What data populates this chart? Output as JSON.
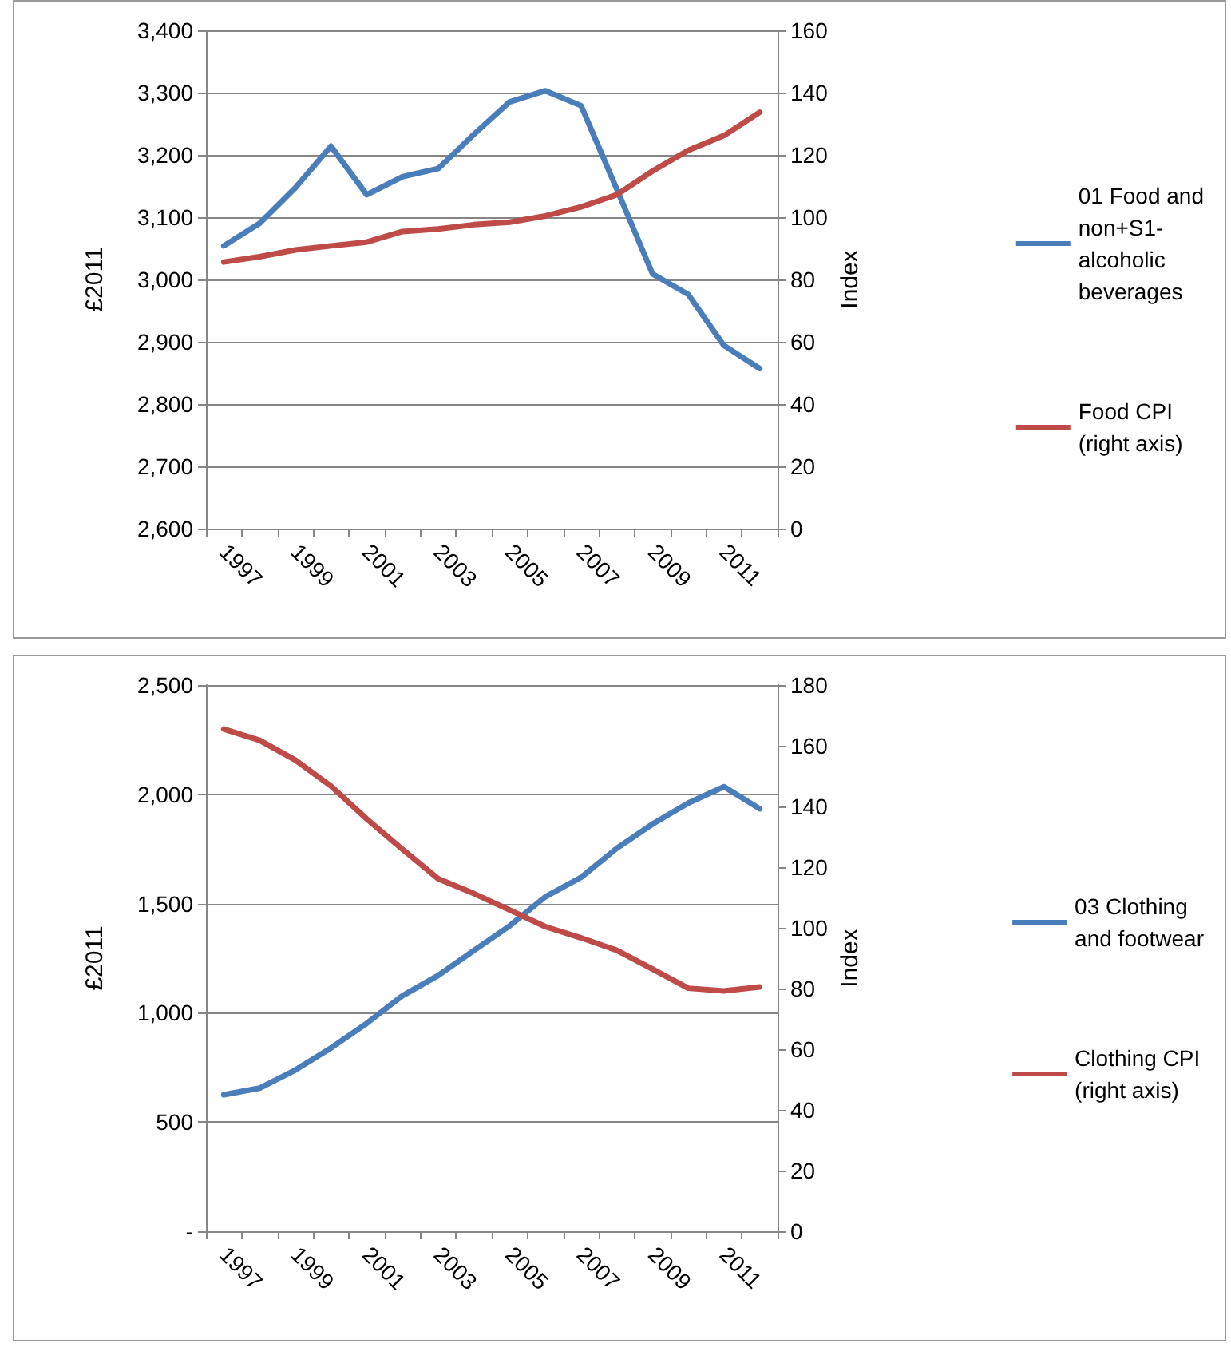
{
  "chart_data": [
    {
      "type": "line",
      "ylabel": "£2011",
      "y2label": "Index",
      "categories": [
        "1997",
        null,
        "1999",
        null,
        "2001",
        null,
        "2003",
        null,
        "2005",
        null,
        "2007",
        null,
        "2009",
        null,
        "2011",
        null
      ],
      "series": [
        {
          "name": "01 Food and\nnon+S1-\nalcoholic\nbeverages",
          "color": "#4a7ebb",
          "values": [
            3054,
            3090,
            3147,
            3214,
            3136,
            3165,
            3178,
            3233,
            3285,
            3303,
            3279,
            3145,
            3009,
            2976,
            2894,
            2857
          ]
        },
        {
          "name": "Food CPI\n(right axis)",
          "color": "#be4b48",
          "axis": "y2",
          "values": [
            85.6,
            87.3,
            89.5,
            90.8,
            92,
            95.4,
            96.2,
            97.6,
            98.4,
            100.4,
            103.3,
            107.2,
            114.8,
            121.5,
            126.2,
            133.7
          ]
        }
      ],
      "ylim": [
        2600,
        3400
      ],
      "yticks": [
        {
          "value": 2600,
          "label": "2,600"
        },
        {
          "value": 2700,
          "label": "2,700"
        },
        {
          "value": 2800,
          "label": "2,800"
        },
        {
          "value": 2900,
          "label": "2,900"
        },
        {
          "value": 3000,
          "label": "3,000"
        },
        {
          "value": 3100,
          "label": "3,100"
        },
        {
          "value": 3200,
          "label": "3,200"
        },
        {
          "value": 3300,
          "label": "3,300"
        },
        {
          "value": 3400,
          "label": "3,400"
        }
      ],
      "y2lim": [
        0,
        160
      ],
      "y2ticks": [
        0,
        20,
        40,
        60,
        80,
        100,
        120,
        140,
        160
      ],
      "grid": "y",
      "legend": "right",
      "marker": "none",
      "line_style": "solid"
    },
    {
      "type": "line",
      "ylabel": "£2011",
      "y2label": "Index",
      "categories": [
        "1997",
        null,
        "1999",
        null,
        "2001",
        null,
        "2003",
        null,
        "2005",
        null,
        "2007",
        null,
        "2009",
        null,
        "2011",
        null
      ],
      "series": [
        {
          "name": "03 Clothing\nand footwear",
          "color": "#4a7ebb",
          "values": [
            625,
            655,
            738,
            839,
            952,
            1078,
            1171,
            1285,
            1398,
            1531,
            1620,
            1753,
            1864,
            1960,
            2035,
            1934
          ]
        },
        {
          "name": "Clothing CPI\n(right axis)",
          "color": "#be4b48",
          "axis": "y2",
          "values": [
            165.5,
            161.8,
            155.3,
            146.7,
            135.9,
            125.9,
            116.2,
            111.3,
            105.9,
            100.4,
            96.7,
            92.6,
            86.4,
            80.1,
            79.2,
            80.5
          ]
        }
      ],
      "ylim": [
        0,
        2500
      ],
      "yticks": [
        {
          "value": 0,
          "label": "-"
        },
        500,
        {
          "value": 1000,
          "label": "1,000"
        },
        {
          "value": 1500,
          "label": "1,500"
        },
        {
          "value": 2000,
          "label": "2,000"
        },
        {
          "value": 2500,
          "label": "2,500"
        }
      ],
      "y2lim": [
        0,
        180
      ],
      "y2ticks": [
        0,
        20,
        40,
        60,
        80,
        100,
        120,
        140,
        160,
        180
      ],
      "grid": "y",
      "legend": "right",
      "marker": "none",
      "line_style": "solid"
    }
  ]
}
